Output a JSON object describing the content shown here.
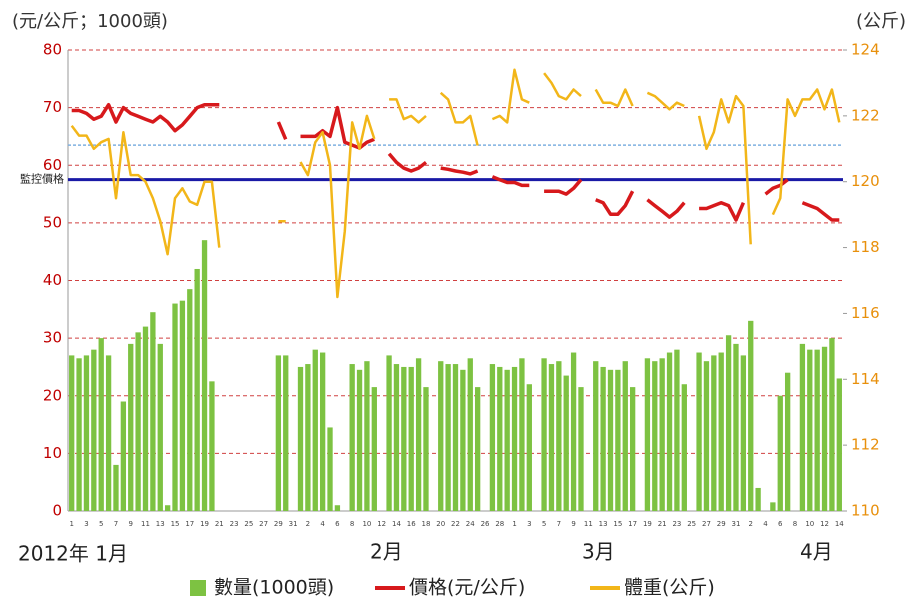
{
  "chart_data": {
    "type": "bar_line",
    "y_label": "(元/公斤；1000頭)",
    "y2_label": "(公斤)",
    "months": [
      "2012年 1月",
      "2月",
      "3月",
      "4月"
    ],
    "categories": [
      "1",
      null,
      "3",
      null,
      "5",
      null,
      "7",
      null,
      "9",
      null,
      "11",
      null,
      "13",
      null,
      "15",
      null,
      "17",
      null,
      "19",
      null,
      "21",
      null,
      "23",
      null,
      "25",
      null,
      "27",
      null,
      "29",
      null,
      "31",
      null,
      "2",
      null,
      "4",
      null,
      "6",
      null,
      "8",
      null,
      "10",
      null,
      "12",
      null,
      "14",
      null,
      "16",
      null,
      "18",
      null,
      "20",
      null,
      "22",
      null,
      "24",
      null,
      "26",
      null,
      "28",
      null,
      "1",
      null,
      "3",
      null,
      "5",
      null,
      "7",
      null,
      "9",
      null,
      "11",
      null,
      "13",
      null,
      "15",
      null,
      "17",
      null,
      "19",
      null,
      "21",
      null,
      "23",
      null,
      "25",
      null,
      "27",
      null,
      "29",
      null,
      "31",
      null,
      "2",
      null,
      "4",
      null,
      "6",
      null,
      "8",
      null,
      "10",
      null,
      "12",
      null,
      "14"
    ],
    "series": [
      {
        "name": "數量(1000頭)",
        "kind": "bar",
        "color": "#7dc242",
        "values": [
          27,
          26.5,
          27,
          28,
          30,
          27,
          8,
          19,
          29,
          31,
          32,
          34.5,
          29,
          1,
          36,
          36.5,
          38.5,
          42,
          47,
          22.5,
          null,
          null,
          null,
          null,
          null,
          null,
          null,
          null,
          27,
          27,
          null,
          25,
          25.5,
          28,
          27.5,
          14.5,
          1,
          null,
          25.5,
          24.5,
          26,
          21.5,
          null,
          27,
          25.5,
          25,
          25,
          26.5,
          21.5,
          null,
          26,
          25.5,
          25.5,
          24.5,
          26.5,
          21.5,
          null,
          25.5,
          25,
          24.5,
          25,
          26.5,
          22,
          null,
          26.5,
          25.5,
          26,
          23.5,
          27.5,
          21.5,
          null,
          26,
          25,
          24.5,
          24.5,
          26,
          21.5,
          null,
          26.5,
          26,
          26.5,
          27.5,
          28,
          22,
          null,
          27.5,
          26,
          27,
          27.5,
          30.5,
          29,
          27,
          33,
          4,
          null,
          1.5,
          20,
          24,
          null,
          29,
          28,
          28,
          28.5,
          30,
          23
        ]
      },
      {
        "name": "價格(元/公斤)",
        "kind": "line",
        "color": "#d7191c",
        "values": [
          69.5,
          69.5,
          69,
          68,
          68.5,
          70.5,
          67.5,
          70,
          69,
          68.5,
          68,
          67.5,
          68.5,
          67.5,
          66,
          67,
          68.5,
          70,
          70.5,
          70.5,
          70.5,
          null,
          null,
          null,
          null,
          null,
          null,
          null,
          67.5,
          64.5,
          null,
          65,
          65,
          65,
          66,
          65,
          70,
          64,
          63.5,
          63,
          64,
          64.5,
          null,
          62,
          60.5,
          59.5,
          59,
          59.5,
          60.5,
          null,
          59.5,
          59.3,
          59,
          58.8,
          58.5,
          59,
          null,
          58,
          57.5,
          57,
          57,
          56.5,
          56.5,
          null,
          55.5,
          55.5,
          55.5,
          55,
          56,
          57.5,
          null,
          54,
          53.5,
          51.5,
          51.5,
          53,
          55.5,
          null,
          54,
          53,
          52,
          51,
          52,
          53.5,
          null,
          52.5,
          52.5,
          53,
          53.5,
          53,
          50.5,
          53.5,
          null,
          null,
          55,
          56,
          56.5,
          57.5,
          null,
          53.5,
          53,
          52.5,
          51.5,
          50.5,
          50.5
        ]
      },
      {
        "name": "體重(公斤)",
        "kind": "line",
        "axis": "y2",
        "color": "#f2b619",
        "values": [
          121.7,
          121.4,
          121.4,
          121,
          121.2,
          121.3,
          119.5,
          121.5,
          120.2,
          120.2,
          120,
          119.5,
          118.8,
          117.8,
          119.5,
          119.8,
          119.4,
          119.3,
          120,
          120,
          118,
          null,
          null,
          null,
          null,
          null,
          null,
          null,
          118.8,
          118.8,
          null,
          120.6,
          120.2,
          121.2,
          121.5,
          120.5,
          116.5,
          118.5,
          121.8,
          121,
          122,
          121.3,
          null,
          122.5,
          122.5,
          121.9,
          122,
          121.8,
          122,
          null,
          122.7,
          122.5,
          121.8,
          121.8,
          122,
          121.1,
          null,
          121.9,
          122,
          121.8,
          123.4,
          122.5,
          122.4,
          null,
          123.3,
          123,
          122.6,
          122.5,
          122.8,
          122.6,
          null,
          122.8,
          122.4,
          122.4,
          122.3,
          122.8,
          122.3,
          null,
          122.7,
          122.6,
          122.4,
          122.2,
          122.4,
          122.3,
          null,
          122,
          121,
          121.5,
          122.5,
          121.8,
          122.6,
          122.3,
          118.1,
          null,
          null,
          119,
          119.5,
          122.5,
          122,
          122.5,
          122.5,
          122.8,
          122.2,
          122.8,
          121.8
        ]
      }
    ],
    "reference_lines": [
      {
        "label": "監控價格",
        "value": 57.5,
        "color": "#1a1aa6"
      },
      {
        "value": 63.5,
        "color": "#7fb0e0"
      }
    ],
    "ylim": [
      0,
      80
    ],
    "yticks": [
      0,
      10,
      20,
      30,
      40,
      50,
      60,
      70,
      80
    ],
    "y2lim": [
      110,
      124
    ],
    "y2ticks": [
      110,
      112,
      114,
      116,
      118,
      120,
      122,
      124
    ],
    "grid": true,
    "grid_color": "#d04040"
  }
}
